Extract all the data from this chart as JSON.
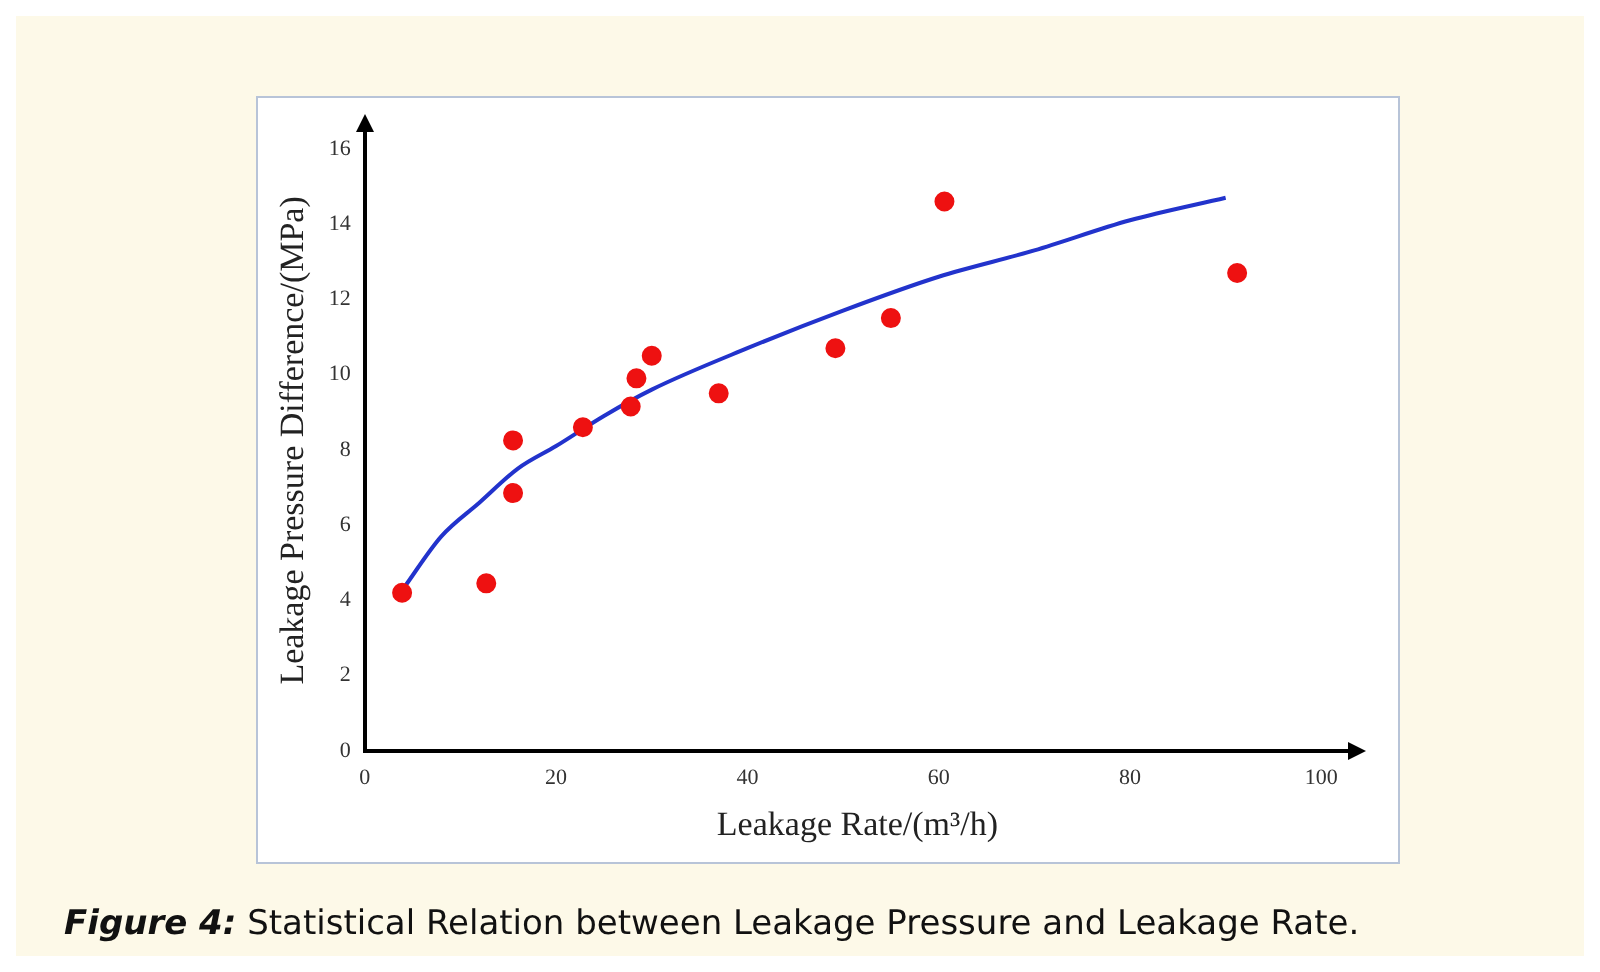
{
  "chart_data": {
    "type": "scatter",
    "xlabel": "Leakage Rate/(m³/h)",
    "ylabel": "Leakage Pressure Difference/(MPa)",
    "annotations": [
      "Figure 4:",
      "Statistical Relation between Leakage Pressure and Leakage Rate."
    ],
    "xlim": [
      0,
      103
    ],
    "ylim": [
      0,
      16.5
    ],
    "xticks": [
      0,
      20,
      40,
      60,
      80,
      100
    ],
    "yticks": [
      0,
      2,
      4,
      6,
      8,
      10,
      12,
      14,
      16
    ],
    "grid": false,
    "legend": false,
    "marker": "circle",
    "series": [
      {
        "color": "#ee1111",
        "x": [
          3.9,
          12.7,
          15.5,
          15.5,
          22.8,
          27.8,
          28.4,
          30,
          37,
          49.2,
          55,
          60.6,
          91.2
        ],
        "values": [
          4.2,
          4.45,
          8.25,
          6.85,
          8.6,
          9.15,
          9.9,
          10.5,
          9.5,
          10.7,
          11.5,
          14.6,
          12.7
        ]
      },
      {
        "type": "line",
        "color": "#2233cc",
        "marker": "none",
        "x": [
          4,
          8,
          12,
          16,
          20,
          25,
          30,
          40,
          50,
          60,
          70,
          80,
          90
        ],
        "values": [
          4.3,
          5.7,
          6.6,
          7.5,
          8.1,
          8.9,
          9.6,
          10.7,
          11.7,
          12.6,
          13.3,
          14.1,
          14.7
        ]
      }
    ]
  }
}
